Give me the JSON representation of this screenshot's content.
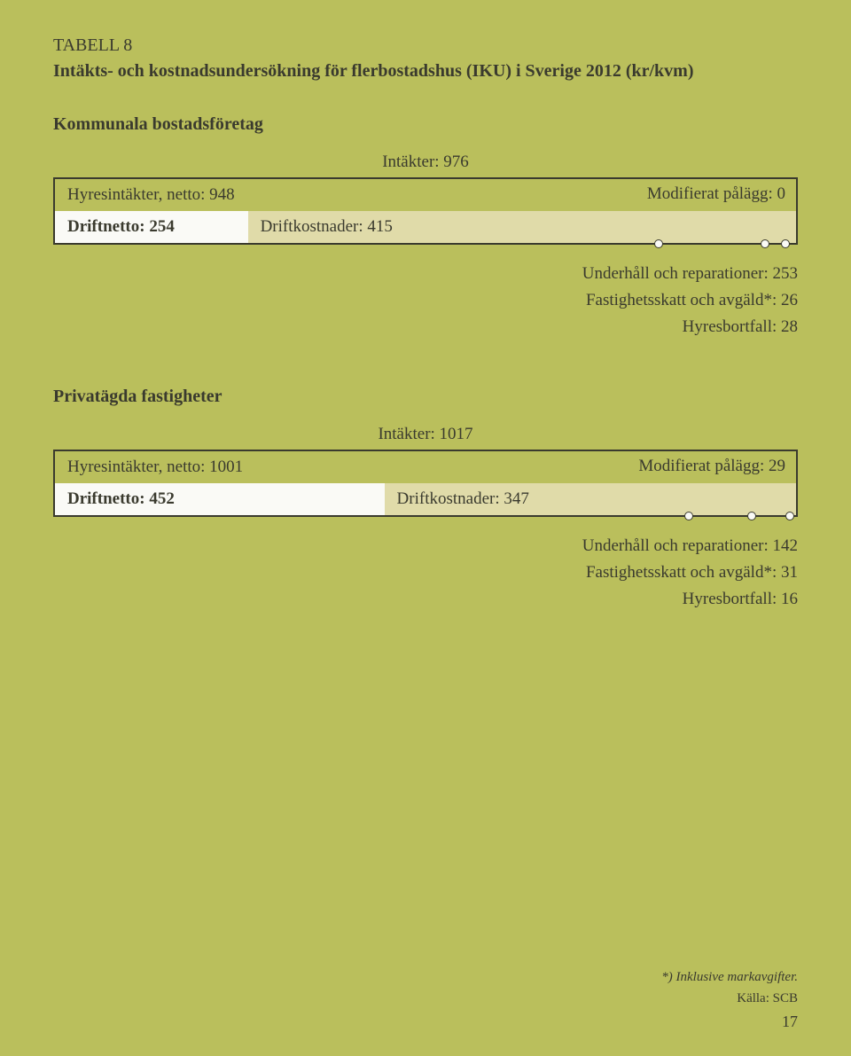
{
  "page": {
    "background_color": "#babf5c",
    "text_color": "#3a3a2e",
    "page_number": "17"
  },
  "header": {
    "tabell": "TABELL 8",
    "title": "Intäkts- och kostnadsundersökning för flerbostadshus (IKU) i Sverige 2012 (kr/kvm)"
  },
  "sections": [
    {
      "subtitle": "Kommunala bostadsföretag",
      "intakter_label": "Intäkter: 976",
      "intakter_value": 976,
      "hyresintakter_label": "Hyresintäkter, netto: 948",
      "hyresintakter_value": 948,
      "modifierat_label": "Modifierat pålägg: 0",
      "modifierat_value": 0,
      "driftnetto_label": "Driftnetto: 254",
      "driftnetto_value": 254,
      "driftkostnader_label": "Driftkostnader: 415",
      "driftkostnader_value": 415,
      "underhall_label": "Underhåll och reparationer: 253",
      "underhall_value": 253,
      "fastighetsskatt_label": "Fastighetsskatt och avgäld*: 26",
      "fastighetsskatt_value": 26,
      "hyresbortfall_label": "Hyresbortfall: 28",
      "hyresbortfall_value": 28,
      "box_border_color": "#3a3a2e",
      "seg_driftnetto_bg": "#fafaf6",
      "seg_other_bg": "#e0dba9",
      "marker_fill": "#fafaf6"
    },
    {
      "subtitle": "Privatägda fastigheter",
      "intakter_label": "Intäkter: 1017",
      "intakter_value": 1017,
      "hyresintakter_label": "Hyresintäkter, netto: 1001",
      "hyresintakter_value": 1001,
      "modifierat_label": "Modifierat pålägg: 29",
      "modifierat_value": 29,
      "driftnetto_label": "Driftnetto: 452",
      "driftnetto_value": 452,
      "driftkostnader_label": "Driftkostnader: 347",
      "driftkostnader_value": 347,
      "underhall_label": "Underhåll och reparationer: 142",
      "underhall_value": 142,
      "fastighetsskatt_label": "Fastighetsskatt och avgäld*: 31",
      "fastighetsskatt_value": 31,
      "hyresbortfall_label": "Hyresbortfall: 16",
      "hyresbortfall_value": 16,
      "box_border_color": "#3a3a2e",
      "seg_driftnetto_bg": "#fafaf6",
      "seg_other_bg": "#e0dba9",
      "marker_fill": "#fafaf6"
    }
  ],
  "footnote": "*) Inklusive markavgifter.",
  "source": "Källa: SCB"
}
